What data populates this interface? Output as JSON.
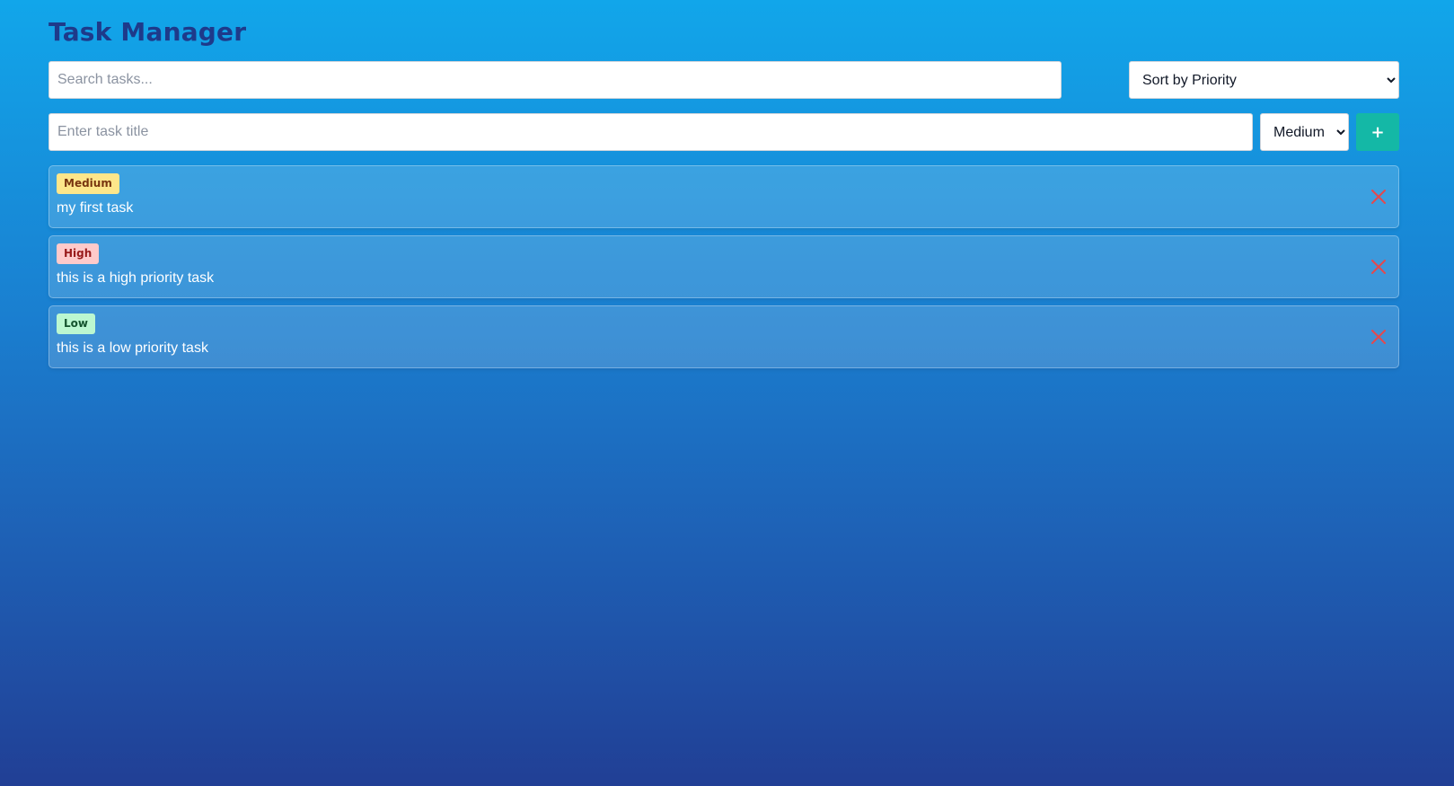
{
  "app": {
    "title": "Task Manager"
  },
  "search": {
    "placeholder": "Search tasks...",
    "value": ""
  },
  "sort": {
    "selected": "Sort by Priority"
  },
  "new_task": {
    "placeholder": "Enter task title",
    "value": "",
    "priority_selected": "Medium",
    "add_label": "+"
  },
  "tasks": [
    {
      "priority": "Medium",
      "title": "my first task"
    },
    {
      "priority": "High",
      "title": "this is a high priority task"
    },
    {
      "priority": "Low",
      "title": "this is a low priority task"
    }
  ],
  "colors": {
    "title": "#1e3a8a",
    "accent": "#14b8a6",
    "delete": "#e5484d",
    "badge_medium_bg": "#fde68a",
    "badge_medium_text": "#78350f",
    "badge_high_bg": "#fecaca",
    "badge_high_text": "#991b1b",
    "badge_low_bg": "#bbf7d0",
    "badge_low_text": "#14532d"
  },
  "icons": {
    "delete": "close-icon"
  }
}
